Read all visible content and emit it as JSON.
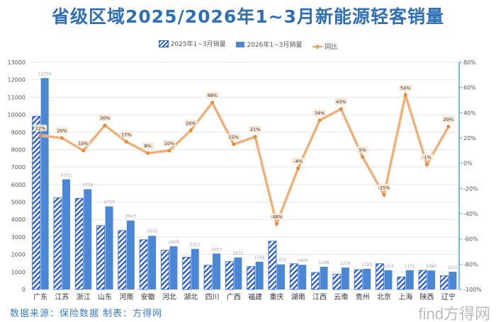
{
  "chart_data": {
    "type": "bar",
    "title": "省级区域2025/2026年1~3月新能源轻客销量",
    "categories": [
      "广东",
      "江苏",
      "浙江",
      "山东",
      "河南",
      "安徽",
      "河北",
      "湖北",
      "四川",
      "广西",
      "福建",
      "重庆",
      "湖南",
      "江西",
      "云南",
      "贵州",
      "北京",
      "上海",
      "陕西",
      "辽宁"
    ],
    "series": [
      {
        "name": "2025年1~3月销量",
        "type": "bar",
        "axis": "left",
        "pattern": "hatched",
        "color": "#2b5fd6",
        "values": [
          9913,
          5252,
          5216,
          3656,
          3370,
          2843,
          2245,
          1842,
          1387,
          1593,
          1312,
          2760,
          1468,
          969,
          877,
          1127,
          1471,
          715,
          1095,
          783
        ]
      },
      {
        "name": "2026年1~3月销量",
        "type": "bar",
        "axis": "left",
        "color": "#4a88d6",
        "values": [
          12094,
          6302,
          5738,
          4753,
          3943,
          3070,
          2469,
          2321,
          2053,
          1832,
          1588,
          1435,
          1409,
          1298,
          1254,
          1183,
          1103,
          1101,
          1084,
          1010
        ]
      },
      {
        "name": "同比",
        "type": "line",
        "axis": "right",
        "color": "#f0a060",
        "values": [
          22,
          20,
          10,
          30,
          17,
          8,
          10,
          26,
          48,
          15,
          21,
          -48,
          -4,
          34,
          43,
          5,
          -25,
          54,
          -1,
          29
        ]
      }
    ],
    "left_axis": {
      "range": [
        0,
        13000
      ],
      "ticks": [
        0,
        1000,
        2000,
        3000,
        4000,
        5000,
        6000,
        7000,
        8000,
        9000,
        10000,
        11000,
        12000,
        13000
      ]
    },
    "right_axis": {
      "range": [
        -100,
        80
      ],
      "ticks": [
        -100,
        -80,
        -60,
        -40,
        -20,
        0,
        20,
        40,
        60,
        80
      ],
      "unit": "%"
    },
    "grid": true,
    "legend": "top"
  },
  "source": "数据来源：保险数据 制表：方得网",
  "watermark": "find方得网"
}
